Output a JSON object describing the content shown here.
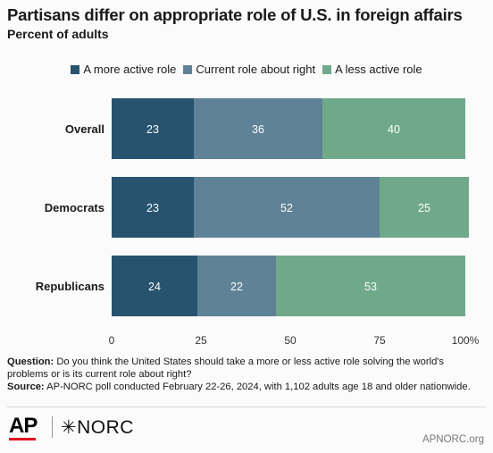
{
  "chart_data": {
    "type": "bar",
    "orientation": "horizontal",
    "stacked": true,
    "title": "Partisans differ on appropriate role of U.S. in foreign affairs",
    "subtitle": "Percent of adults",
    "categories": [
      "Overall",
      "Democrats",
      "Republicans"
    ],
    "series": [
      {
        "name": "A more active role",
        "color": "#27536f",
        "values": [
          23,
          23,
          24
        ]
      },
      {
        "name": "Current role about right",
        "color": "#5f8296",
        "values": [
          36,
          52,
          22
        ]
      },
      {
        "name": "A less active role",
        "color": "#6fa98a",
        "values": [
          40,
          25,
          53
        ]
      }
    ],
    "xlim": [
      0,
      100
    ],
    "xticks": [
      "0",
      "25",
      "50",
      "75",
      "100%"
    ],
    "legend_position": "top",
    "grid": false
  },
  "note": {
    "question_label": "Question:",
    "question_text": "Do you think the United States should take a more or less active role solving the world's problems or is its current role about right?",
    "source_label": "Source:",
    "source_text": "AP-NORC poll conducted February 22-26, 2024, with 1,102 adults age 18 and older nationwide."
  },
  "footer": {
    "ap_logo": "AP",
    "norc_logo": "✳NORC",
    "credit": "APNORC.org"
  },
  "colors": {
    "more_active": "#27536f",
    "about_right": "#5f8296",
    "less_active": "#6fa98a",
    "ap_red": "#e0141e"
  }
}
